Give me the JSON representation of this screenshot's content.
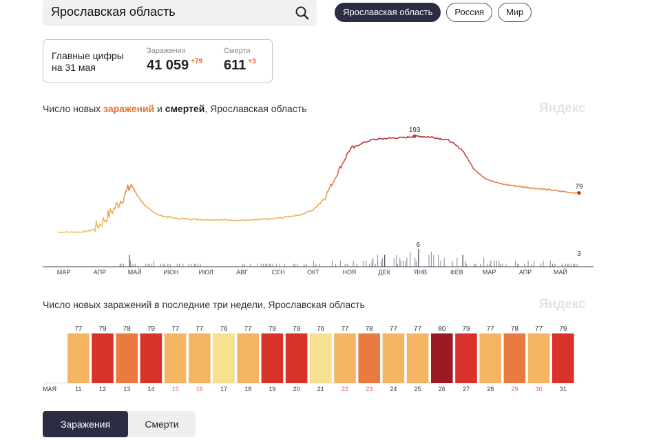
{
  "search": {
    "value": "Ярославская область",
    "icon": "search-icon"
  },
  "region_tabs": [
    {
      "label": "Ярославская область",
      "active": true
    },
    {
      "label": "Россия",
      "active": false
    },
    {
      "label": "Мир",
      "active": false
    }
  ],
  "summary": {
    "title_line1": "Главные цифры",
    "title_line2": "на 31 мая",
    "infections_label": "Заражения",
    "infections_value": "41 059",
    "infections_delta": "+79",
    "deaths_label": "Смерти",
    "deaths_value": "611",
    "deaths_delta": "+3"
  },
  "chart1_title": {
    "part1": "Число новых ",
    "part2": "заражений",
    "part3": " и ",
    "part4": "смертей",
    "part5": ", Ярославская область"
  },
  "chart2_title": "Число новых заражений в последние три недели, Ярославская область",
  "watermark": "Яндекс",
  "bottom_tabs": [
    {
      "label": "Заражения",
      "active": true
    },
    {
      "label": "Смерти",
      "active": false
    }
  ],
  "colors": {
    "accent_orange": "#e8702a",
    "active_dark": "#2b2d42",
    "deaths_bar": "#8a8fa8",
    "weekend_label": "#e05a4a"
  },
  "chart_data": [
    {
      "type": "line",
      "title": "Число новых заражений и смертей, Ярославская область",
      "month_labels": [
        "МАР",
        "АПР",
        "МАЙ",
        "ИЮН",
        "ИЮЛ",
        "АВГ",
        "СЕН",
        "ОКТ",
        "НОЯ",
        "ДЕК",
        "ЯНВ",
        "ФЕВ",
        "МАР",
        "АПР",
        "МАЙ"
      ],
      "series": [
        {
          "name": "заражений",
          "points": [
            [
              "2020-03-10",
              0
            ],
            [
              "2020-04-01",
              1
            ],
            [
              "2020-04-08",
              4
            ],
            [
              "2020-04-16",
              18
            ],
            [
              "2020-04-24",
              38
            ],
            [
              "2020-05-01",
              58
            ],
            [
              "2020-05-08",
              80
            ],
            [
              "2020-05-12",
              96
            ],
            [
              "2020-05-17",
              75
            ],
            [
              "2020-05-24",
              52
            ],
            [
              "2020-06-05",
              34
            ],
            [
              "2020-06-20",
              28
            ],
            [
              "2020-07-10",
              26
            ],
            [
              "2020-08-01",
              25
            ],
            [
              "2020-08-20",
              24
            ],
            [
              "2020-09-10",
              27
            ],
            [
              "2020-09-25",
              32
            ],
            [
              "2020-10-05",
              36
            ],
            [
              "2020-10-15",
              45
            ],
            [
              "2020-10-25",
              70
            ],
            [
              "2020-11-05",
              120
            ],
            [
              "2020-11-15",
              165
            ],
            [
              "2020-11-25",
              178
            ],
            [
              "2020-12-05",
              186
            ],
            [
              "2020-12-20",
              189
            ],
            [
              "2021-01-01",
              190
            ],
            [
              "2021-01-10",
              193
            ],
            [
              "2021-01-25",
              191
            ],
            [
              "2021-02-08",
              185
            ],
            [
              "2021-02-20",
              165
            ],
            [
              "2021-03-01",
              130
            ],
            [
              "2021-03-10",
              110
            ],
            [
              "2021-03-25",
              97
            ],
            [
              "2021-04-10",
              92
            ],
            [
              "2021-04-25",
              88
            ],
            [
              "2021-05-10",
              84
            ],
            [
              "2021-05-20",
              81
            ],
            [
              "2021-05-31",
              79
            ]
          ],
          "labels": [
            {
              "date": "2021-01-10",
              "value": 193,
              "text": "193"
            },
            {
              "date": "2021-05-31",
              "value": 79,
              "text": "79"
            }
          ]
        },
        {
          "name": "смертей",
          "approximate": true,
          "base": [
            [
              "2020-03-10",
              0
            ],
            [
              "2020-04-25",
              0
            ],
            [
              "2020-05-10",
              1
            ],
            [
              "2020-08-01",
              0.5
            ],
            [
              "2020-10-01",
              0.8
            ],
            [
              "2020-11-20",
              1.5
            ],
            [
              "2020-12-20",
              2.5
            ],
            [
              "2021-01-10",
              3
            ],
            [
              "2021-02-05",
              2.5
            ],
            [
              "2021-03-01",
              1.5
            ],
            [
              "2021-04-01",
              1
            ],
            [
              "2021-05-31",
              1
            ]
          ],
          "spikes": [
            [
              "2020-05-10",
              4
            ],
            [
              "2020-10-15",
              2
            ],
            [
              "2020-12-15",
              4
            ],
            [
              "2021-01-13",
              6
            ],
            [
              "2021-01-20",
              5
            ],
            [
              "2021-02-10",
              4
            ],
            [
              "2021-02-20",
              4
            ],
            [
              "2021-03-10",
              3
            ],
            [
              "2021-05-31",
              3
            ]
          ],
          "labels": [
            {
              "date": "2021-01-13",
              "value": 6,
              "text": "6"
            },
            {
              "date": "2021-05-31",
              "value": 3,
              "text": "3"
            }
          ]
        }
      ]
    },
    {
      "type": "bar",
      "title": "Число новых заражений в последние три недели, Ярославская область",
      "month_label": "МАЯ",
      "categories": [
        "11",
        "12",
        "13",
        "14",
        "15",
        "16",
        "17",
        "18",
        "19",
        "20",
        "21",
        "22",
        "23",
        "24",
        "25",
        "26",
        "27",
        "28",
        "29",
        "30",
        "31"
      ],
      "values": [
        77,
        79,
        78,
        79,
        77,
        77,
        76,
        77,
        79,
        79,
        76,
        77,
        78,
        77,
        77,
        80,
        79,
        77,
        78,
        77,
        79
      ],
      "weekend_categories": [
        "15",
        "16",
        "22",
        "23",
        "29",
        "30"
      ],
      "color_scale": {
        "76": "#f7e08f",
        "77": "#f4b463",
        "78": "#ea7b40",
        "79": "#d9322a",
        "80": "#9c1a26"
      }
    }
  ]
}
